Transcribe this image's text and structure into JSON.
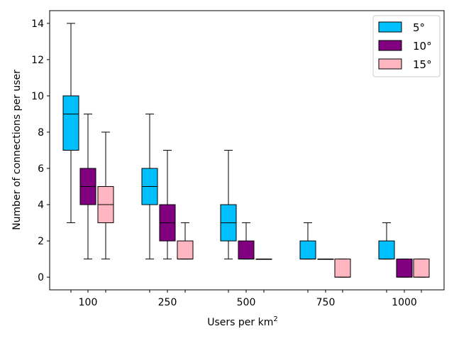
{
  "chart_data": {
    "type": "boxplot",
    "xlabel": "Users per km",
    "xlabel_superscript": "2",
    "ylabel": "Number of connections per user",
    "ylim": [
      -0.7,
      14.7
    ],
    "yticks": [
      0,
      2,
      4,
      6,
      8,
      10,
      12,
      14
    ],
    "categories": [
      "100",
      "250",
      "500",
      "750",
      "1000"
    ],
    "grid": false,
    "legend_position": "top-right",
    "series": [
      {
        "name": "5°",
        "color": "#00bfff",
        "boxes": [
          {
            "whisker_low": 3,
            "q1": 7,
            "median": 9,
            "q3": 10,
            "whisker_high": 14
          },
          {
            "whisker_low": 1,
            "q1": 4,
            "median": 5,
            "q3": 6,
            "whisker_high": 9
          },
          {
            "whisker_low": 1,
            "q1": 2,
            "median": 3,
            "q3": 4,
            "whisker_high": 7
          },
          {
            "whisker_low": 1,
            "q1": 1,
            "median": 1,
            "q3": 2,
            "whisker_high": 3
          },
          {
            "whisker_low": 1,
            "q1": 1,
            "median": 1,
            "q3": 2,
            "whisker_high": 3
          }
        ]
      },
      {
        "name": "10°",
        "color": "#800080",
        "boxes": [
          {
            "whisker_low": 1,
            "q1": 4,
            "median": 5,
            "q3": 6,
            "whisker_high": 9
          },
          {
            "whisker_low": 1,
            "q1": 2,
            "median": 3,
            "q3": 4,
            "whisker_high": 7
          },
          {
            "whisker_low": 1,
            "q1": 1,
            "median": 1,
            "q3": 2,
            "whisker_high": 3
          },
          {
            "whisker_low": 1,
            "q1": 1,
            "median": 1,
            "q3": 1,
            "whisker_high": 1
          },
          {
            "whisker_low": 0,
            "q1": 0,
            "median": 0,
            "q3": 1,
            "whisker_high": 1
          }
        ]
      },
      {
        "name": "15°",
        "color": "#ffb6c1",
        "boxes": [
          {
            "whisker_low": 1,
            "q1": 3,
            "median": 4,
            "q3": 5,
            "whisker_high": 8
          },
          {
            "whisker_low": 1,
            "q1": 1,
            "median": 1,
            "q3": 2,
            "whisker_high": 3
          },
          {
            "whisker_low": 1,
            "q1": 1,
            "median": 1,
            "q3": 1,
            "whisker_high": 1
          },
          {
            "whisker_low": 0,
            "q1": 0,
            "median": 0,
            "q3": 1,
            "whisker_high": 1
          },
          {
            "whisker_low": 0,
            "q1": 0,
            "median": 0,
            "q3": 1,
            "whisker_high": 1
          }
        ]
      }
    ]
  }
}
